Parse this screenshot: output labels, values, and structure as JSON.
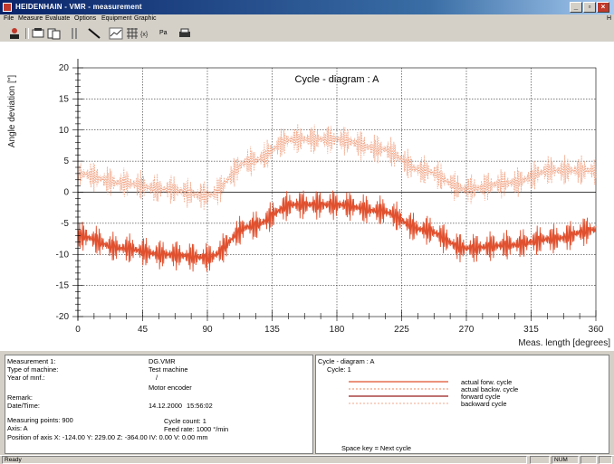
{
  "window": {
    "title": "HEIDENHAIN - VMR - measurement"
  },
  "menu": {
    "items": [
      "File",
      "Measure",
      "Evaluate",
      "Options",
      "Equipment",
      "Graphic"
    ],
    "help": "H"
  },
  "toolbar": {
    "icons": [
      "person-icon",
      "print-preview-icon",
      "columns-icon",
      "slope-icon",
      "chart-icon",
      "grid-icon",
      "scale-icon",
      "pass-icon",
      "printer-icon"
    ],
    "pass_label": "Pa"
  },
  "colors": {
    "forward_actual": "#e0502e",
    "backward_actual": "#f0a080",
    "forward_nominal": "#9b1c1c",
    "backward_nominal": "#f5b8a0",
    "accent": "#0a246a"
  },
  "chart_data": {
    "type": "line",
    "title": "Cycle - diagram : A",
    "ylabel": "Angle deviation [\"]",
    "xlabel": "Meas. length [degrees]",
    "xlim": [
      0,
      360
    ],
    "ylim": [
      -20,
      20
    ],
    "x_ticks": [
      0,
      45,
      90,
      135,
      180,
      225,
      270,
      315,
      360
    ],
    "y_ticks": [
      20,
      15,
      10,
      5,
      0,
      -5,
      -10,
      -15,
      -20
    ],
    "grid": true,
    "series": [
      {
        "name": "actual forw. cycle",
        "style": "solid",
        "center": -7.5,
        "amplitude": 2.5,
        "noise": 2,
        "x": [
          0,
          30,
          60,
          90,
          120,
          150,
          180,
          210,
          240,
          270,
          300,
          330,
          360
        ],
        "y": [
          -7,
          -9,
          -10,
          -10.5,
          -5.5,
          -2,
          -2,
          -3,
          -6,
          -9,
          -8.5,
          -7.5,
          -6
        ]
      },
      {
        "name": "actual backw. cycle",
        "style": "dotted",
        "center": 3,
        "amplitude": 2.5,
        "noise": 2,
        "x": [
          0,
          30,
          60,
          90,
          120,
          150,
          180,
          210,
          240,
          270,
          300,
          330,
          360
        ],
        "y": [
          3,
          1.5,
          0.5,
          -0.5,
          5,
          8.5,
          8.5,
          7,
          3.5,
          0.5,
          1.5,
          3.5,
          3.5
        ]
      }
    ]
  },
  "info": {
    "measurement_label": "Measurement 1:",
    "measurement_value": "DG.VMR",
    "machine_label": "Type of machine:",
    "machine_value": "Test machine",
    "year_label": "Year of mnf.:",
    "year_value": "/",
    "encoder_value": "Motor encoder",
    "remark_label": "Remark:",
    "datetime_label": "Date/Time:",
    "date_value": "14.12.2000",
    "time_value": "15:56:02",
    "points": "Measuring points: 900",
    "cycle_count": "Cycle count: 1",
    "axis": "Axis:  A",
    "feed_rate": "Feed rate: 1000 °/min",
    "position": "Position of axis  X: -124.00  Y:  229.00  Z: -364.00  IV:    0.00  V:    0.00 mm"
  },
  "legend": {
    "title": "Cycle - diagram : A",
    "cycle": "Cycle: 1",
    "items": [
      "actual forw. cycle",
      "actual backw. cycle",
      "forward cycle",
      "backward cycle"
    ],
    "hint": "Space key = Next cycle"
  },
  "status": {
    "text": "Ready",
    "num": "NUM"
  }
}
